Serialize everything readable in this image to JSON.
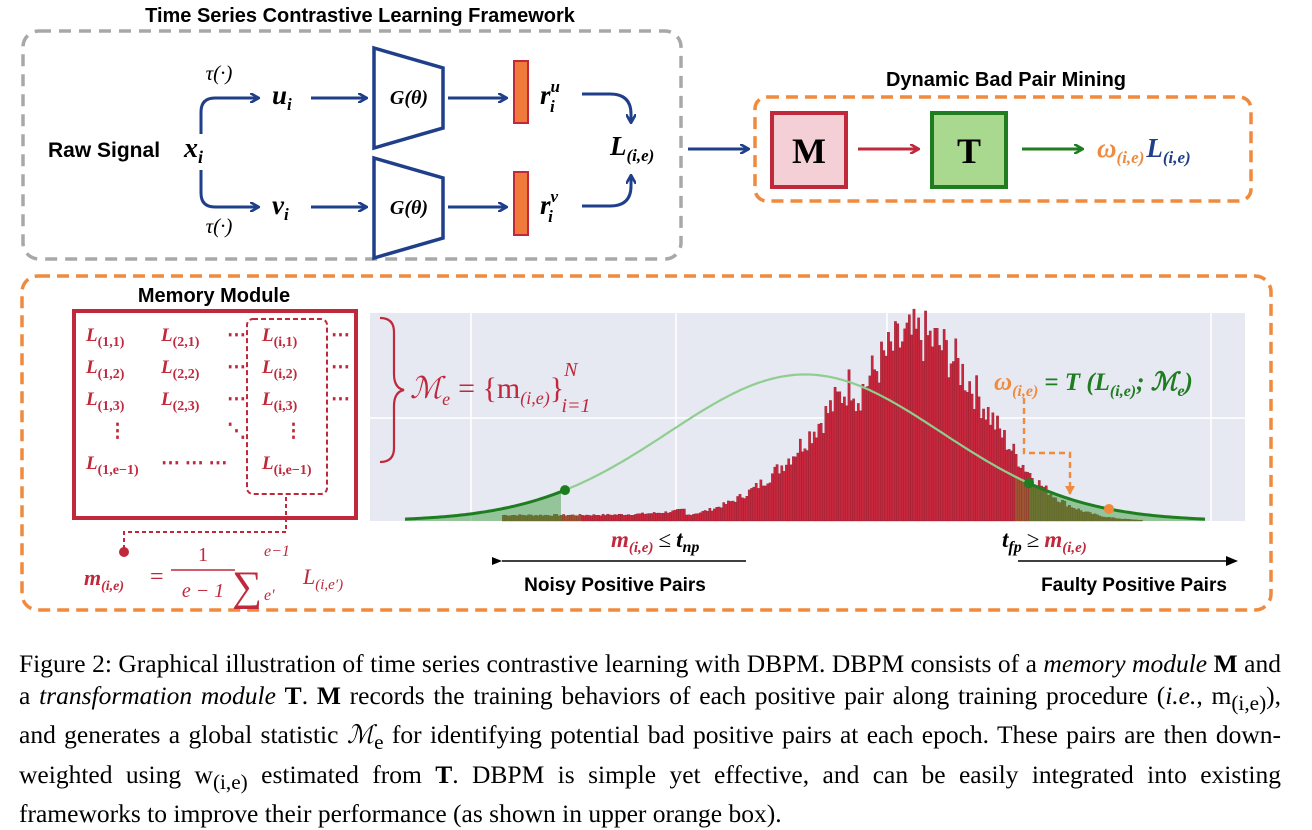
{
  "framework": {
    "title": "Time Series Contrastive Learning Framework",
    "raw_signal": "Raw Signal",
    "x": "x",
    "x_sub": "i",
    "tau": "τ(·)",
    "u": "u",
    "u_sub": "i",
    "v": "v",
    "v_sub": "i",
    "encoder": "G(θ)",
    "r": "r",
    "r_sup_u": "u",
    "r_sup_v": "v",
    "r_sub": "i",
    "loss": "L",
    "loss_sub": "(i,e)"
  },
  "dbpm": {
    "title": "Dynamic Bad Pair Mining",
    "m_module": "M",
    "t_module": "T",
    "weight": "ω",
    "weight_sub": "(i,e)",
    "loss": "L",
    "loss_sub": "(i,e)"
  },
  "memory": {
    "title": "Memory Module",
    "rows": [
      [
        "L(1,1)",
        "L(2,1)",
        "⋯",
        "L(i,1)",
        "⋯"
      ],
      [
        "L(1,2)",
        "L(2,2)",
        "⋯",
        "L(i,2)",
        "⋯"
      ],
      [
        "L(1,3)",
        "L(2,3)",
        "⋯",
        "L(i,3)",
        "⋯"
      ],
      [
        "⋮",
        "",
        "⋱",
        "⋮",
        ""
      ],
      [
        "L(1,e−1)",
        "⋯ ⋯ ⋯",
        "",
        "L(i,e−1)",
        ""
      ]
    ],
    "mean_formula": {
      "lhs": "m",
      "lhs_sub": "(i,e)",
      "eq": "=",
      "frac_num": "1",
      "frac_den": "e − 1",
      "sum": "∑",
      "sum_top": "e−1",
      "sum_bottom": "e′",
      "term": "L",
      "term_sub": "(i,e′)"
    }
  },
  "set_formula": {
    "lhs": "ℳ",
    "lhs_sub": "e",
    "body": "= {m",
    "body_sub": "(i,e)",
    "close": "}",
    "sup": "N",
    "sub": "i=1"
  },
  "transform_formula": {
    "weight": "ω",
    "weight_sub": "(i,e)",
    "rhs": "= T (L",
    "rhs_sub": "(i,e)",
    "rhs_tail": "; ℳ",
    "rhs_tail_sub": "e",
    "close": ")"
  },
  "thresholds": {
    "np_lhs": "m",
    "np_lhs_sub": "(i,e)",
    "np_rel": "≤",
    "np_t": "t",
    "np_t_sub": "np",
    "fp_t": "t",
    "fp_t_sub": "fp",
    "fp_rel": "≥",
    "fp_rhs": "m",
    "fp_rhs_sub": "(i,e)",
    "noisy_label": "Noisy Positive Pairs",
    "faulty_label": "Faulty Positive Pairs"
  },
  "colors": {
    "blue": "#1f3f8a",
    "red": "#c0283c",
    "orange": "#f08a3c",
    "green": "#1e7d1e",
    "gray_dash": "#a8a8a8",
    "plot_bg": "#e6e8f2",
    "gauss": "#8fce8f"
  },
  "chart_data": {
    "type": "bar",
    "description_values": "histogram of mean losses m(i,e) with fitted Gaussian",
    "mu": 0.5,
    "sigma": 0.17,
    "t_np": 0.2,
    "t_fp": 0.78,
    "m_example": 0.88,
    "hist_x_range": [
      0,
      1.0
    ],
    "grid": true
  },
  "caption": {
    "fig": "Figure 2:",
    "s1": " Graphical illustration of time series contrastive learning with DBPM. DBPM consists of a ",
    "mem": "memory module",
    "s2": " ",
    "M": "M",
    "s3": " and a ",
    "trans": "transformation module",
    "s4": " ",
    "T": "T",
    "s5": ". ",
    "M2": "M",
    "s6": " records the training behaviors of each positive pair along training procedure (",
    "ie": "i.e.",
    "s7": ", m",
    "s7sub": "(i,e)",
    "s8": "), and generates a global statistic ",
    "Me": "ℳ",
    "Me_sub": "e",
    "s9": " for identifying potential bad positive pairs at each epoch. These pairs are then down-weighted using w",
    "w_sub": "(i,e)",
    "s10": " estimated from ",
    "T2": "T",
    "s11": ". DBPM is simple yet effective, and can be easily integrated into existing frameworks to improve their performance (as shown in upper orange box)."
  }
}
